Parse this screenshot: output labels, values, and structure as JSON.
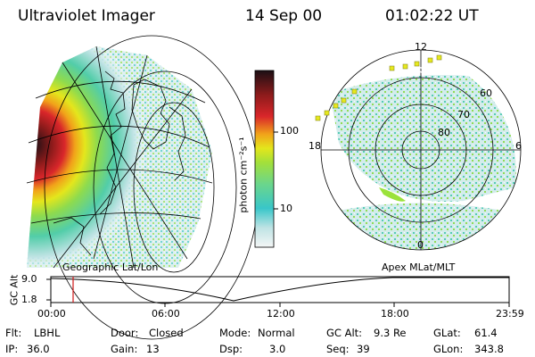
{
  "header": {
    "instrument": "Ultraviolet Imager",
    "date": "14 Sep 00",
    "time": "01:02:22 UT"
  },
  "colorbar": {
    "label": "photon cm⁻²s⁻¹",
    "ticks": [
      "100",
      "10"
    ],
    "scale": "log",
    "colors": [
      "#f4f6f6",
      "#bfe3e4",
      "#39c6c9",
      "#6cd68a",
      "#a3e03a",
      "#e4e61c",
      "#f1a21a",
      "#d9262a",
      "#8e1b1b",
      "#1c0f14"
    ]
  },
  "left_panel": {
    "caption": "Geographic Lat/Lon"
  },
  "right_panel": {
    "caption": "Apex MLat/MLT",
    "mlt_labels": [
      "12",
      "18",
      "6",
      "0"
    ],
    "mlat_labels": [
      "60",
      "70",
      "80"
    ]
  },
  "timeline": {
    "axis_label": "GC Alt",
    "y_ticks": [
      "9.0",
      "1.8"
    ],
    "x_ticks": [
      "00:00",
      "06:00",
      "12:00",
      "18:00",
      "23:59"
    ],
    "marker_time": "01:02",
    "marker_color": "#d01818"
  },
  "info": {
    "filter_label": "Flt:",
    "filter_value": "LBHL",
    "door_label": "Door:",
    "door_value": "Closed",
    "mode_label": "Mode:",
    "mode_value": "Normal",
    "gc_alt_label": "GC Alt:",
    "gc_alt_value": "9.3 Re",
    "glat_label": "GLat:",
    "glat_value": "61.4",
    "ip_label": "IP:",
    "ip_value": "36.0",
    "gain_label": "Gain:",
    "gain_value": "13",
    "dsp_label": "Dsp:",
    "dsp_value": "3.0",
    "seq_label": "Seq:",
    "seq_value": "39",
    "glon_label": "GLon:",
    "glon_value": "343.8"
  }
}
